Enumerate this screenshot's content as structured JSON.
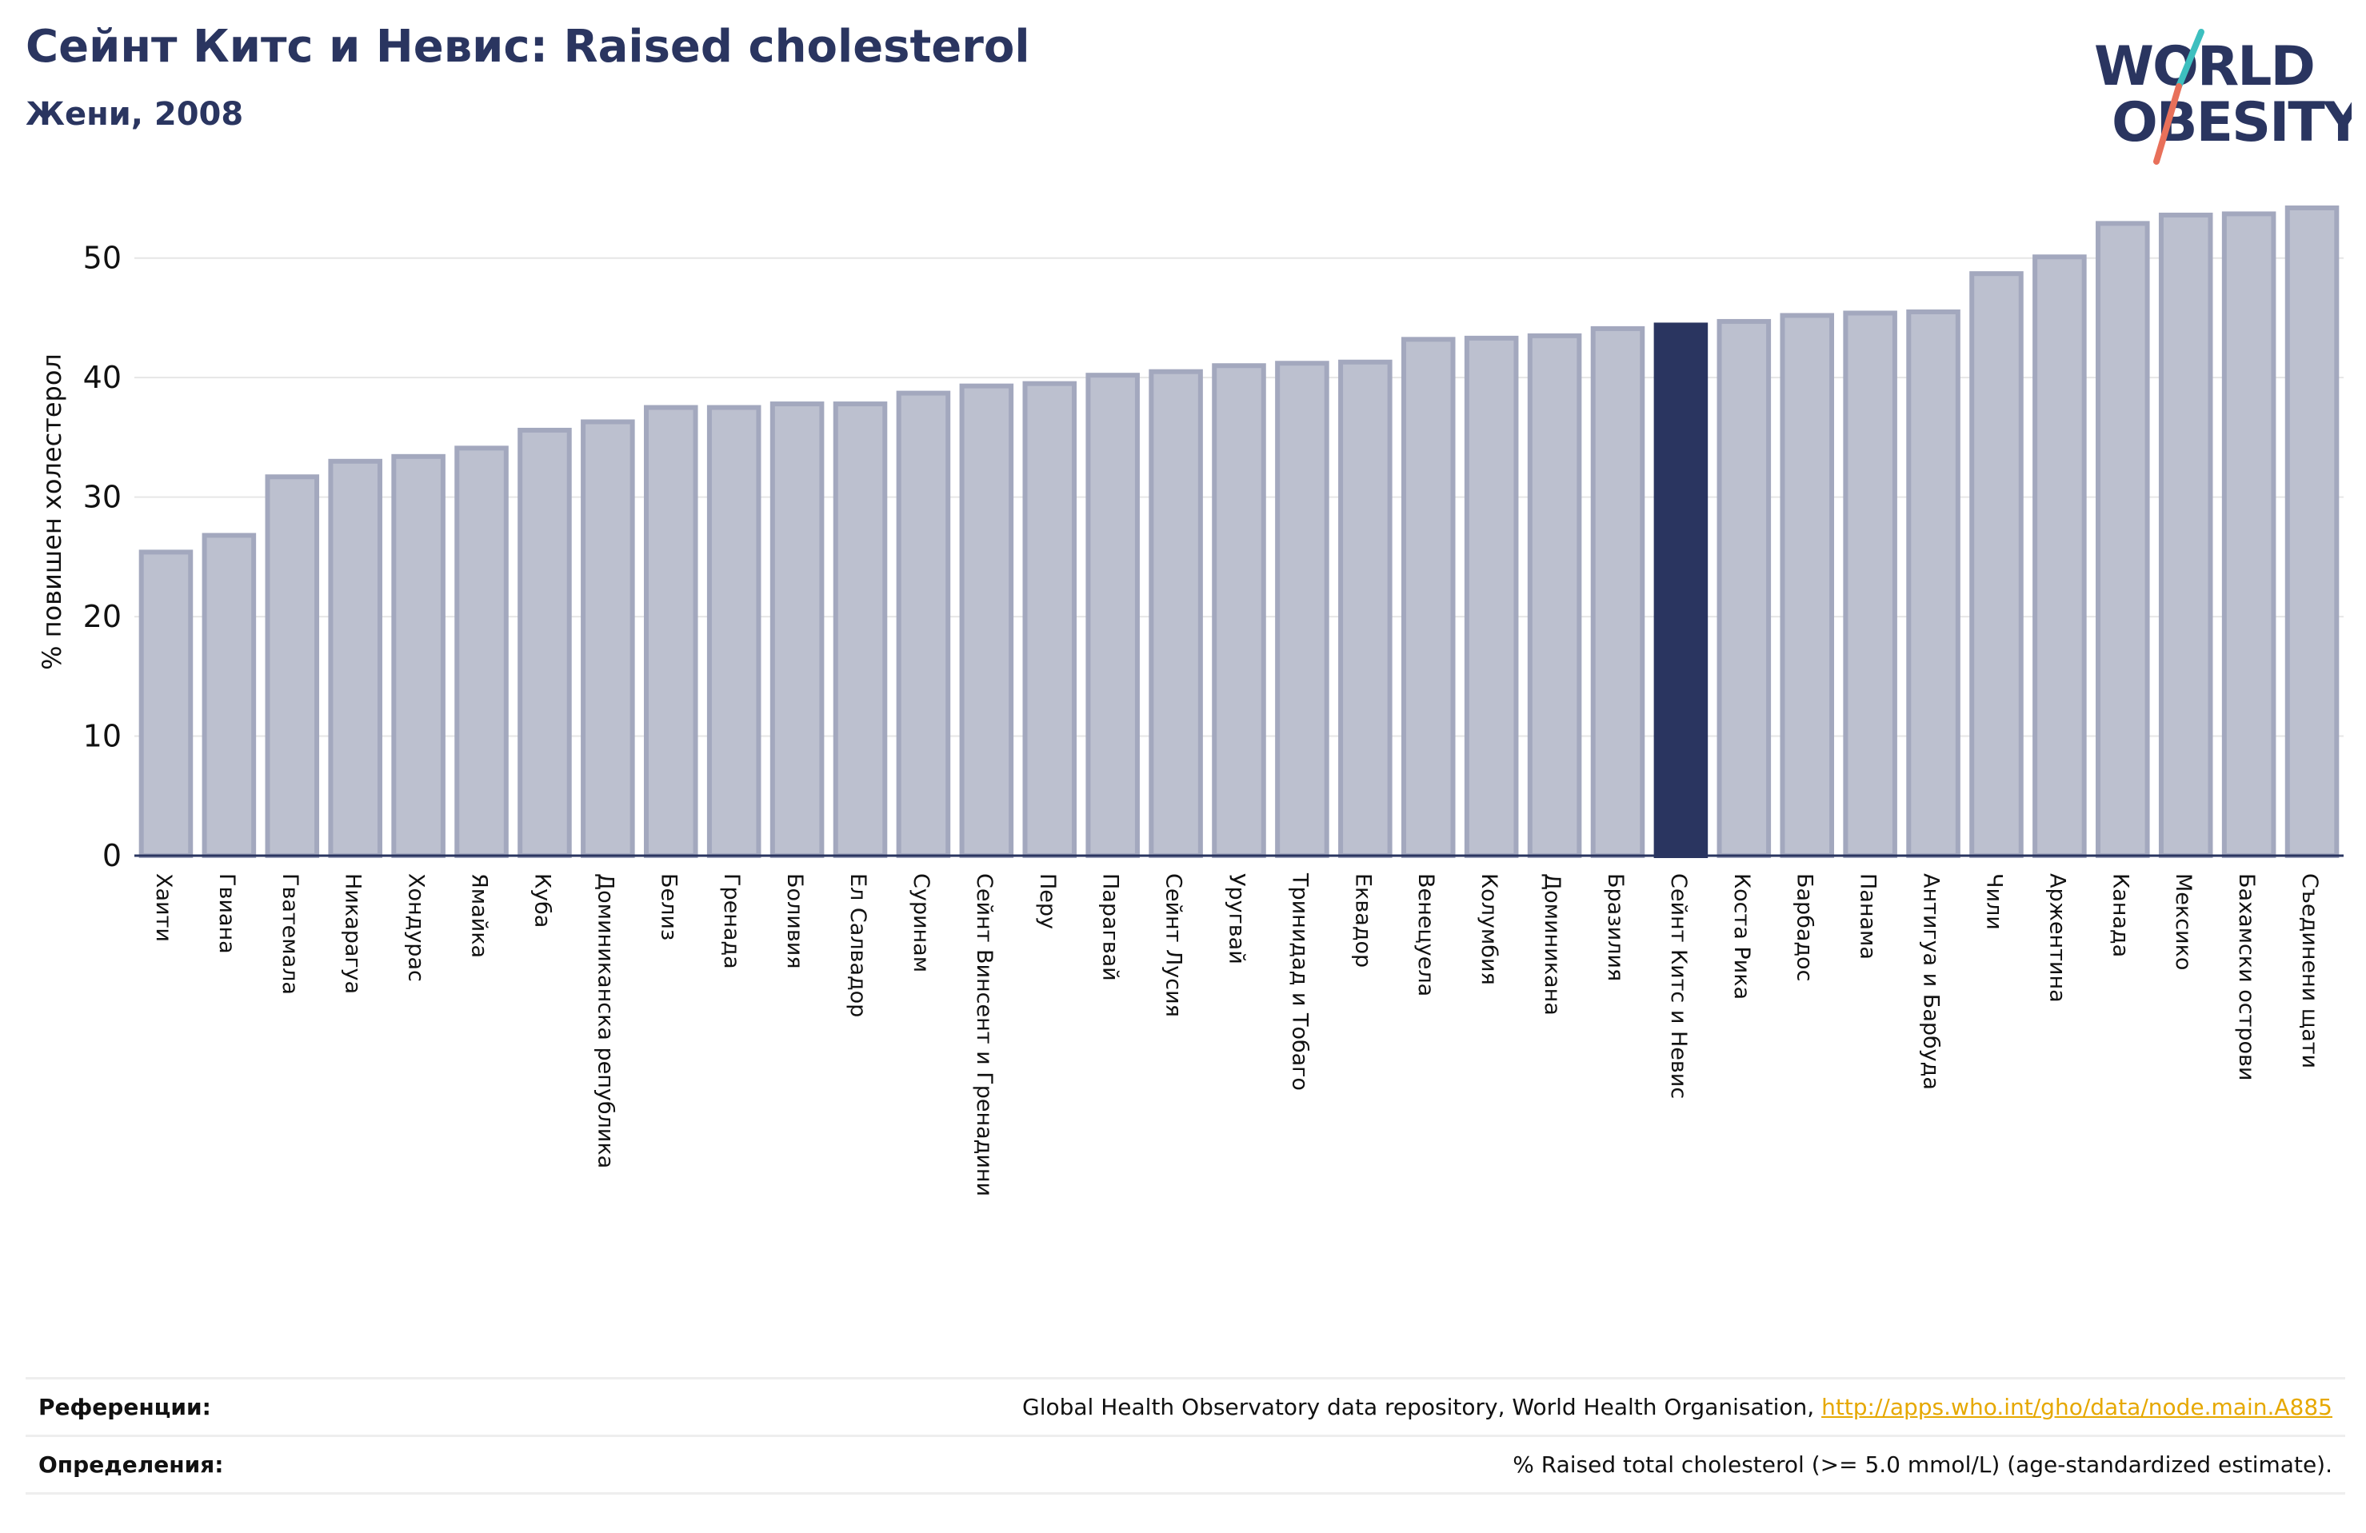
{
  "header": {
    "title": "Сейнт Китс и Невис: Raised cholesterol",
    "subtitle": "Жени, 2008"
  },
  "logo": {
    "line1": "WORLD",
    "line2": "OBESITY",
    "text_color": "#2a3560",
    "slash_top_color": "#3dbfbf",
    "slash_bottom_color": "#e8705a"
  },
  "footer": {
    "references_label": "Референции:",
    "references_text": "Global Health Observatory data repository, World Health Organisation, ",
    "references_link": "http://apps.who.int/gho/data/node.main.A885",
    "definitions_label": "Определения:",
    "definitions_text": "% Raised total cholesterol (>= 5.0 mmol/L) (age-standardized estimate)."
  },
  "chart_data": {
    "type": "bar",
    "ylabel": "% повишен холестерол",
    "xlabel": "",
    "ylim": [
      0,
      55
    ],
    "yticks": [
      0,
      10,
      20,
      30,
      40,
      50
    ],
    "grid": true,
    "highlight": "Сейнт Китс и Невис",
    "colors": {
      "bar_fill": "#bcc0cf",
      "bar_edge": "#a3a8be",
      "highlight_fill": "#2a3560",
      "grid": "#e6e6e6",
      "axis": "#2a3560"
    },
    "categories": [
      "Хаити",
      "Гвиана",
      "Гватемала",
      "Никарагуа",
      "Хондурас",
      "Ямайка",
      "Куба",
      "Доминиканска република",
      "Белиз",
      "Гренада",
      "Боливия",
      "Ел Салвадор",
      "Суринам",
      "Сейнт Винсент и Гренадини",
      "Перу",
      "Парагвай",
      "Сейнт Лусия",
      "Уругвай",
      "Тринидад и Тобаго",
      "Еквадор",
      "Венецуела",
      "Колумбия",
      "Доминикана",
      "Бразилия",
      "Сейнт Китс и Невис",
      "Коста Рика",
      "Барбадос",
      "Панама",
      "Антигуа и Барбуда",
      "Чили",
      "Аржентина",
      "Канада",
      "Мексико",
      "Бахамски острови",
      "Съединени щати"
    ],
    "values": [
      25.4,
      26.8,
      31.7,
      33.0,
      33.4,
      34.1,
      35.6,
      36.3,
      37.5,
      37.5,
      37.8,
      37.8,
      38.7,
      39.3,
      39.5,
      40.2,
      40.5,
      41.0,
      41.2,
      41.3,
      43.2,
      43.3,
      43.5,
      44.1,
      44.4,
      44.7,
      45.2,
      45.4,
      45.5,
      48.7,
      50.1,
      52.9,
      53.6,
      53.7,
      54.2
    ]
  }
}
